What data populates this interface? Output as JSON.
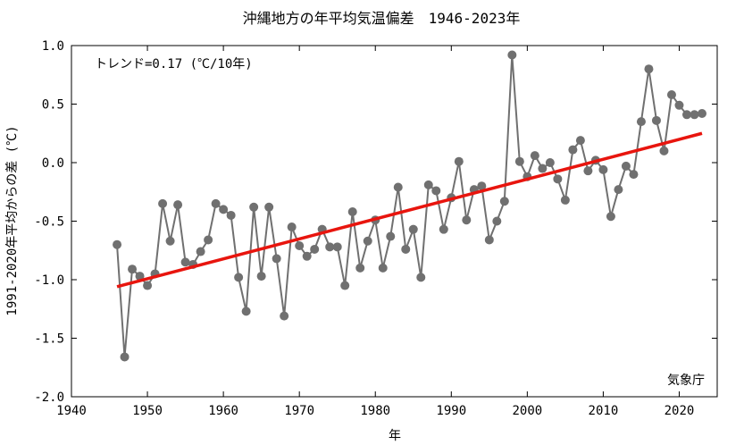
{
  "chart_data": {
    "type": "line",
    "title": "沖縄地方の年平均気温偏差　1946-2023年",
    "xlabel": "年",
    "ylabel": "1991-2020年平均からの差 (℃)",
    "xlim": [
      1940,
      2025
    ],
    "ylim": [
      -2.0,
      1.0
    ],
    "xticks": [
      "1940",
      "1950",
      "1960",
      "1970",
      "1980",
      "1990",
      "2000",
      "2010",
      "2020"
    ],
    "yticks": [
      "-2.0",
      "-1.5",
      "-1.0",
      "-0.5",
      "0.0",
      "0.5",
      "1.0"
    ],
    "trend_label": "トレンド=0.17 (℃/10年)",
    "source_label": "気象庁",
    "colors": {
      "series": "#707070",
      "trend": "#e8150e"
    },
    "grid": false,
    "series": [
      {
        "x": [
          1946,
          1947,
          1948,
          1949,
          1950,
          1951,
          1952,
          1953,
          1954,
          1955,
          1956,
          1957,
          1958,
          1959,
          1960,
          1961,
          1962,
          1963,
          1964,
          1965,
          1966,
          1967,
          1968,
          1969,
          1970,
          1971,
          1972,
          1973,
          1974,
          1975,
          1976,
          1977,
          1978,
          1979,
          1980,
          1981,
          1982,
          1983,
          1984,
          1985,
          1986,
          1987,
          1988,
          1989,
          1990,
          1991,
          1992,
          1993,
          1994,
          1995,
          1996,
          1997,
          1998,
          1999,
          2000,
          2001,
          2002,
          2003,
          2004,
          2005,
          2006,
          2007,
          2008,
          2009,
          2010,
          2011,
          2012,
          2013,
          2014,
          2015,
          2016,
          2017,
          2018,
          2019,
          2020,
          2021,
          2022,
          2023
        ],
        "values": [
          -0.7,
          -1.66,
          -0.91,
          -0.97,
          -1.05,
          -0.95,
          -0.35,
          -0.67,
          -0.36,
          -0.85,
          -0.87,
          -0.76,
          -0.66,
          -0.35,
          -0.4,
          -0.45,
          -0.98,
          -1.27,
          -0.38,
          -0.97,
          -0.38,
          -0.82,
          -1.31,
          -0.55,
          -0.71,
          -0.8,
          -0.74,
          -0.57,
          -0.72,
          -0.72,
          -1.05,
          -0.42,
          -0.9,
          -0.67,
          -0.49,
          -0.9,
          -0.63,
          -0.21,
          -0.74,
          -0.57,
          -0.98,
          -0.19,
          -0.24,
          -0.57,
          -0.3,
          0.01,
          -0.49,
          -0.23,
          -0.2,
          -0.66,
          -0.5,
          -0.33,
          0.92,
          0.01,
          -0.12,
          0.06,
          -0.05,
          0.0,
          -0.14,
          -0.32,
          0.11,
          0.19,
          -0.07,
          0.02,
          -0.06,
          -0.46,
          -0.23,
          -0.03,
          -0.1,
          0.35,
          0.8,
          0.36,
          0.1,
          0.58,
          0.49,
          0.41,
          0.41,
          0.42
        ]
      }
    ],
    "trend": {
      "x": [
        1946,
        2023
      ],
      "y": [
        -1.06,
        0.25
      ]
    }
  }
}
